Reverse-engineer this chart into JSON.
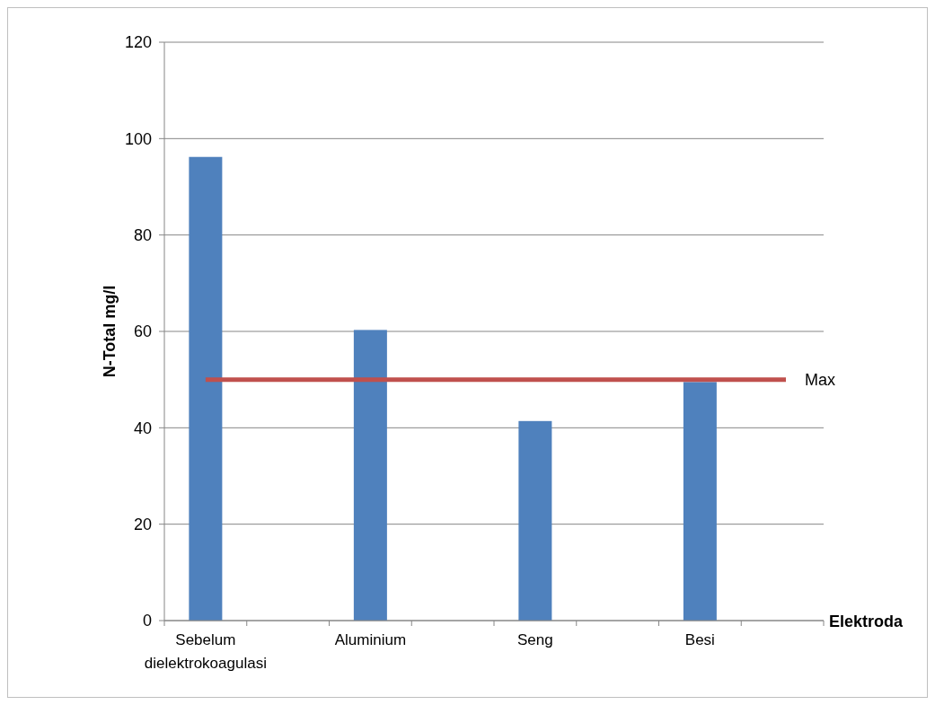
{
  "chart_data": {
    "type": "bar",
    "xlabel": "Elektroda",
    "ylabel": "N-Total mg/l",
    "categories": [
      "Sebelum dielektrokoagulasi",
      null,
      "Aluminium",
      null,
      "Seng",
      null,
      "Besi",
      null
    ],
    "values": [
      96.2,
      null,
      60.3,
      null,
      41.4,
      null,
      49.5,
      null
    ],
    "color": "#4f81bd",
    "ylim": [
      0,
      120
    ],
    "yticks": [
      0,
      20,
      40,
      60,
      80,
      100,
      120
    ],
    "grid": "y",
    "ref_lines": [
      {
        "axis": "y",
        "value": 50,
        "label": "Max",
        "color": "#c0504d"
      }
    ]
  }
}
